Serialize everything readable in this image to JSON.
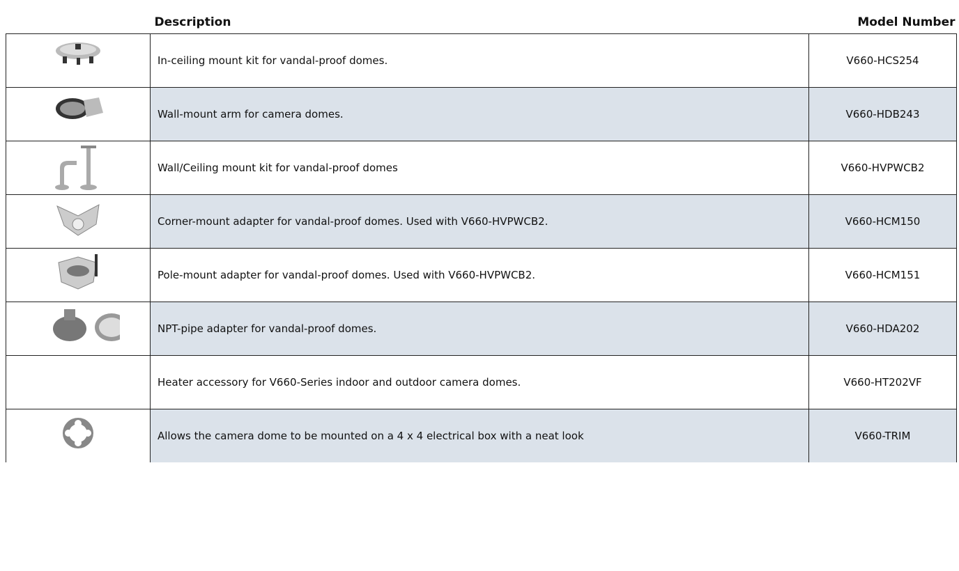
{
  "header": {
    "description": "Description",
    "model_number": "Model Number"
  },
  "table": {
    "rows": [
      {
        "description": "In-ceiling mount kit for vandal-proof domes.",
        "model": "V660-HCS254"
      },
      {
        "description": "Wall-mount arm for camera domes.",
        "model": "V660-HDB243"
      },
      {
        "description": "Wall/Ceiling mount kit for vandal-proof domes",
        "model": "V660-HVPWCB2"
      },
      {
        "description": "Corner-mount adapter for vandal-proof domes. Used with V660-HVPWCB2.",
        "model": "V660-HCM150"
      },
      {
        "description": "Pole-mount adapter for vandal-proof domes. Used with V660-HVPWCB2.",
        "model": "V660-HCM151"
      },
      {
        "description": "NPT-pipe adapter for vandal-proof domes.",
        "model": "V660-HDA202"
      },
      {
        "description": "Heater accessory for V660-Series indoor and outdoor camera domes.",
        "model": "V660-HT202VF"
      },
      {
        "description": "Allows the camera dome to be mounted on a 4 x 4 electrical box with a neat look",
        "model": "V660-TRIM"
      }
    ]
  }
}
